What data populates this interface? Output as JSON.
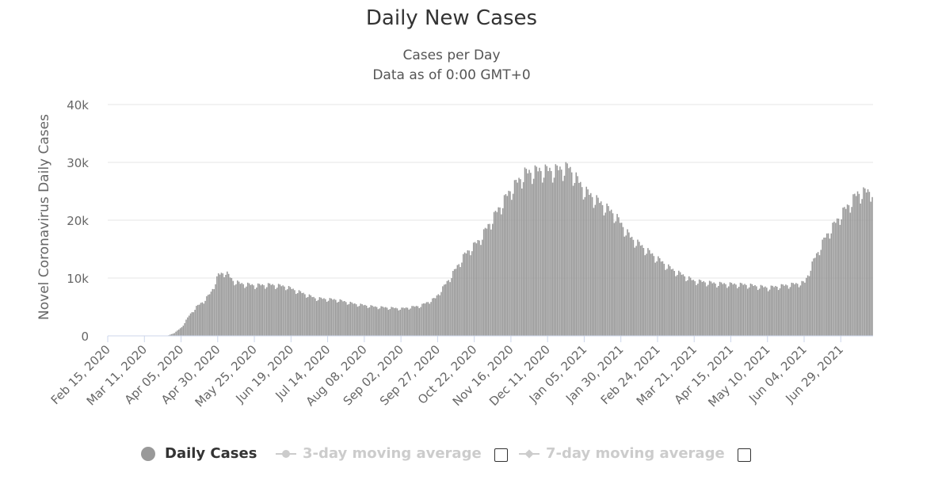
{
  "chart_data": {
    "type": "bar",
    "title": "Daily New Cases",
    "subtitle_lines": [
      "Cases per Day",
      "Data as of 0:00 GMT+0"
    ],
    "ylabel": "Novel Coronavirus Daily Cases",
    "ylim": [
      0,
      40000
    ],
    "yticks": [
      0,
      10000,
      20000,
      30000,
      40000
    ],
    "ytick_labels": [
      "0",
      "10k",
      "20k",
      "30k",
      "40k"
    ],
    "grid": true,
    "bar_color": "#999999",
    "x_start": "2020-02-15",
    "x_end": "2021-07-20",
    "xtick_labels": [
      "Feb 15, 2020",
      "Mar 11, 2020",
      "Apr 05, 2020",
      "Apr 30, 2020",
      "May 25, 2020",
      "Jun 19, 2020",
      "Jul 14, 2020",
      "Aug 08, 2020",
      "Sep 02, 2020",
      "Sep 27, 2020",
      "Oct 22, 2020",
      "Nov 16, 2020",
      "Dec 11, 2020",
      "Jan 05, 2021",
      "Jan 30, 2021",
      "Feb 24, 2021",
      "Mar 21, 2021",
      "Apr 15, 2021",
      "May 10, 2021",
      "Jun 04, 2021",
      "Jun 29, 2021"
    ],
    "series": [
      {
        "name": "Daily Cases",
        "points": [
          [
            "2020-02-15",
            0
          ],
          [
            "2020-03-26",
            0
          ],
          [
            "2020-03-31",
            500
          ],
          [
            "2020-04-05",
            1500
          ],
          [
            "2020-04-10",
            3500
          ],
          [
            "2020-04-15",
            5000
          ],
          [
            "2020-04-20",
            6000
          ],
          [
            "2020-04-25",
            7500
          ],
          [
            "2020-04-30",
            10500
          ],
          [
            "2020-05-05",
            11000
          ],
          [
            "2020-05-10",
            9500
          ],
          [
            "2020-05-15",
            9000
          ],
          [
            "2020-05-25",
            8700
          ],
          [
            "2020-06-05",
            8800
          ],
          [
            "2020-06-15",
            8500
          ],
          [
            "2020-06-25",
            7500
          ],
          [
            "2020-07-05",
            6500
          ],
          [
            "2020-07-20",
            6200
          ],
          [
            "2020-08-01",
            5500
          ],
          [
            "2020-08-15",
            5000
          ],
          [
            "2020-09-02",
            4700
          ],
          [
            "2020-09-15",
            5200
          ],
          [
            "2020-09-25",
            6500
          ],
          [
            "2020-10-05",
            10000
          ],
          [
            "2020-10-15",
            14000
          ],
          [
            "2020-10-25",
            16500
          ],
          [
            "2020-11-05",
            21000
          ],
          [
            "2020-11-15",
            25000
          ],
          [
            "2020-11-25",
            28000
          ],
          [
            "2020-12-05",
            28500
          ],
          [
            "2020-12-15",
            28500
          ],
          [
            "2020-12-25",
            29000
          ],
          [
            "2021-01-05",
            25000
          ],
          [
            "2021-01-15",
            23000
          ],
          [
            "2021-01-25",
            21000
          ],
          [
            "2021-02-05",
            17000
          ],
          [
            "2021-02-20",
            14000
          ],
          [
            "2021-03-05",
            11500
          ],
          [
            "2021-03-20",
            9500
          ],
          [
            "2021-04-05",
            9000
          ],
          [
            "2021-04-25",
            8800
          ],
          [
            "2021-05-10",
            8300
          ],
          [
            "2021-05-25",
            8800
          ],
          [
            "2021-06-04",
            9200
          ],
          [
            "2021-06-10",
            13000
          ],
          [
            "2021-06-18",
            17000
          ],
          [
            "2021-06-29",
            21000
          ],
          [
            "2021-07-10",
            24500
          ],
          [
            "2021-07-20",
            25000
          ]
        ]
      }
    ],
    "legend": [
      {
        "label": "Daily Cases",
        "enabled": true
      },
      {
        "label": "3-day moving average",
        "enabled": false
      },
      {
        "label": "7-day moving average",
        "enabled": false
      }
    ]
  }
}
